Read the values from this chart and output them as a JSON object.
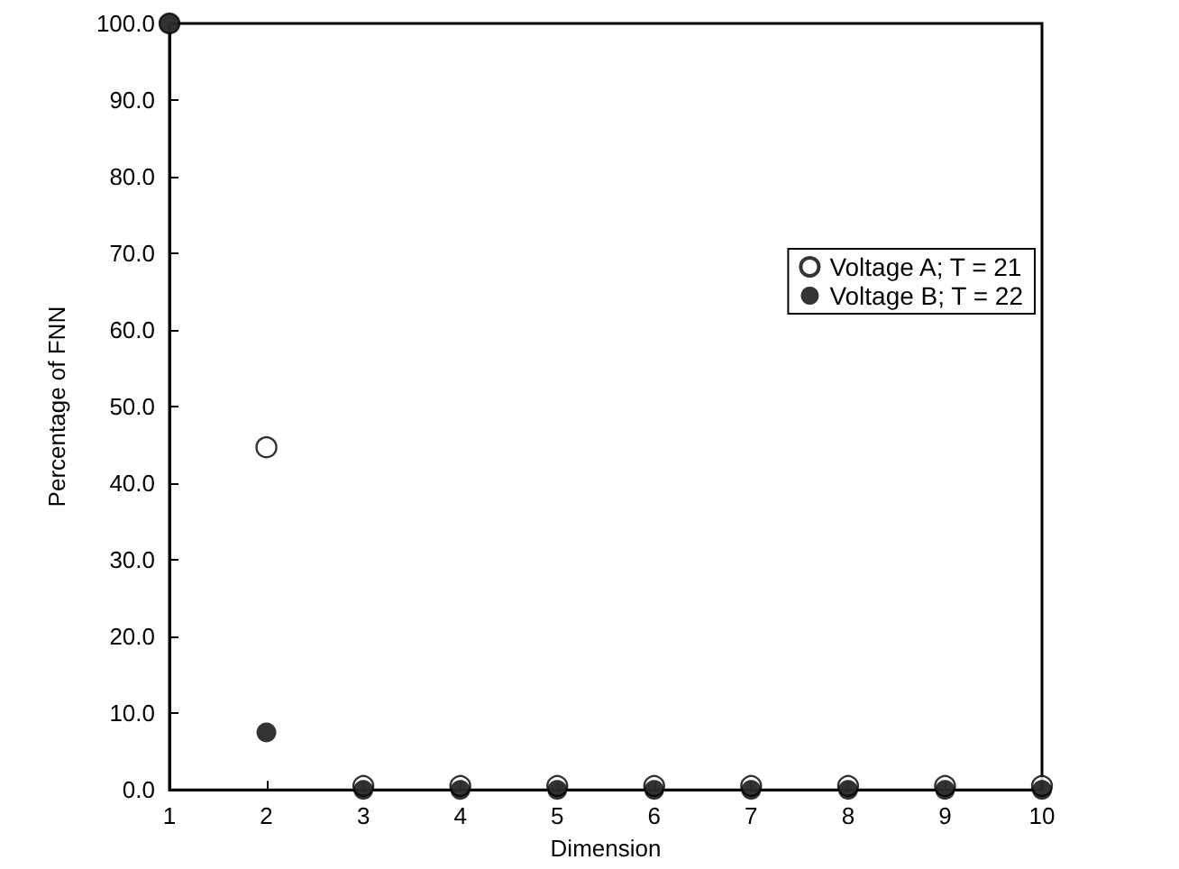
{
  "chart_data": {
    "type": "scatter",
    "xlabel": "Dimension",
    "ylabel": "Percentage of FNN",
    "x": [
      1,
      2,
      3,
      4,
      5,
      6,
      7,
      8,
      9,
      10
    ],
    "series": [
      {
        "name": "Voltage A; T = 21",
        "color": "#000000",
        "marker": "circle-open",
        "values": [
          100,
          44.7,
          0.5,
          0.5,
          0.5,
          0.5,
          0.5,
          0.5,
          0.5,
          0.5
        ]
      },
      {
        "name": "Voltage B; T = 22",
        "color": "#000000",
        "marker": "circle",
        "values": [
          100,
          7.5,
          0,
          0,
          0,
          0,
          0,
          0,
          0,
          0
        ]
      }
    ],
    "xlim": [
      1,
      10
    ],
    "xticks": [
      1,
      2,
      3,
      4,
      5,
      6,
      7,
      8,
      9,
      10
    ],
    "ylim": [
      0,
      100
    ],
    "yticks": [
      {
        "value": 0,
        "label": "0.0"
      },
      {
        "value": 10,
        "label": "10.0"
      },
      {
        "value": 20,
        "label": "20.0"
      },
      {
        "value": 30,
        "label": "30.0"
      },
      {
        "value": 40,
        "label": "40.0"
      },
      {
        "value": 50,
        "label": "50.0"
      },
      {
        "value": 60,
        "label": "60.0"
      },
      {
        "value": 70,
        "label": "70.0"
      },
      {
        "value": 80,
        "label": "80.0"
      },
      {
        "value": 90,
        "label": "90.0"
      },
      {
        "value": 100,
        "label": "100.0"
      }
    ],
    "grid": false,
    "legend": "top right"
  }
}
